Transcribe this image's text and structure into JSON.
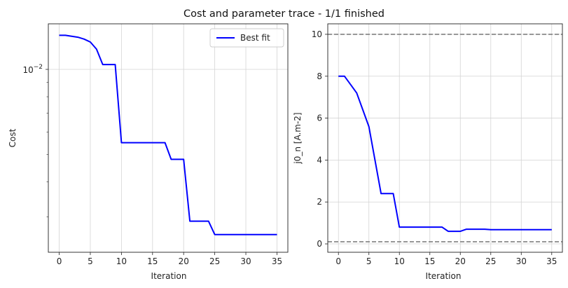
{
  "figure": {
    "title": "Cost and parameter trace - 1/1 finished"
  },
  "chart_data": [
    {
      "type": "line",
      "panel": "left",
      "xlabel": "Iteration",
      "ylabel": "Cost",
      "yscale": "log",
      "xlim": [
        -1.75,
        36.75
      ],
      "ylim": [
        0.00225,
        0.0145
      ],
      "xticks": [
        0,
        5,
        10,
        15,
        20,
        25,
        30,
        35
      ],
      "ytick_labels": [
        {
          "value": 0.01,
          "base": "10",
          "exp": "−2"
        }
      ],
      "grid": true,
      "legend": {
        "placement": "top-right",
        "entries": [
          "Best fit"
        ]
      },
      "color": "#0000ff",
      "series": [
        {
          "name": "Best fit",
          "x": [
            0,
            1,
            2,
            3,
            4,
            5,
            6,
            7,
            8,
            9,
            10,
            11,
            12,
            13,
            14,
            15,
            16,
            17,
            18,
            19,
            20,
            21,
            22,
            23,
            24,
            25,
            26,
            27,
            28,
            29,
            30,
            31,
            32,
            33,
            34,
            35
          ],
          "y": [
            0.0132,
            0.0132,
            0.0131,
            0.013,
            0.0128,
            0.0125,
            0.0118,
            0.0104,
            0.0104,
            0.0104,
            0.0055,
            0.0055,
            0.0055,
            0.0055,
            0.0055,
            0.0055,
            0.0055,
            0.0055,
            0.0048,
            0.0048,
            0.0048,
            0.0029,
            0.0029,
            0.0029,
            0.0029,
            0.0026,
            0.0026,
            0.0026,
            0.0026,
            0.0026,
            0.0026,
            0.0026,
            0.0026,
            0.0026,
            0.0026,
            0.0026
          ]
        }
      ]
    },
    {
      "type": "line",
      "panel": "right",
      "xlabel": "Iteration",
      "ylabel": "j0_n [A.m-2]",
      "yscale": "linear",
      "xlim": [
        -1.75,
        36.75
      ],
      "ylim": [
        -0.4,
        10.5
      ],
      "xticks": [
        0,
        5,
        10,
        15,
        20,
        25,
        30,
        35
      ],
      "yticks": [
        0,
        2,
        4,
        6,
        8,
        10
      ],
      "grid": true,
      "bounds": [
        0.1,
        10
      ],
      "bound_color": "#777777",
      "color": "#0000ff",
      "series": [
        {
          "x": [
            0,
            1,
            2,
            3,
            4,
            5,
            6,
            7,
            8,
            9,
            10,
            11,
            12,
            13,
            14,
            15,
            16,
            17,
            18,
            19,
            20,
            21,
            22,
            23,
            24,
            25,
            26,
            27,
            28,
            29,
            30,
            31,
            32,
            33,
            34,
            35
          ],
          "y": [
            8.0,
            8.0,
            7.6,
            7.2,
            6.4,
            5.6,
            4.0,
            2.4,
            2.4,
            2.4,
            0.8,
            0.8,
            0.8,
            0.8,
            0.8,
            0.8,
            0.8,
            0.8,
            0.6,
            0.6,
            0.6,
            0.7,
            0.7,
            0.7,
            0.7,
            0.68,
            0.68,
            0.68,
            0.68,
            0.68,
            0.68,
            0.68,
            0.68,
            0.68,
            0.68,
            0.68
          ]
        }
      ]
    }
  ]
}
